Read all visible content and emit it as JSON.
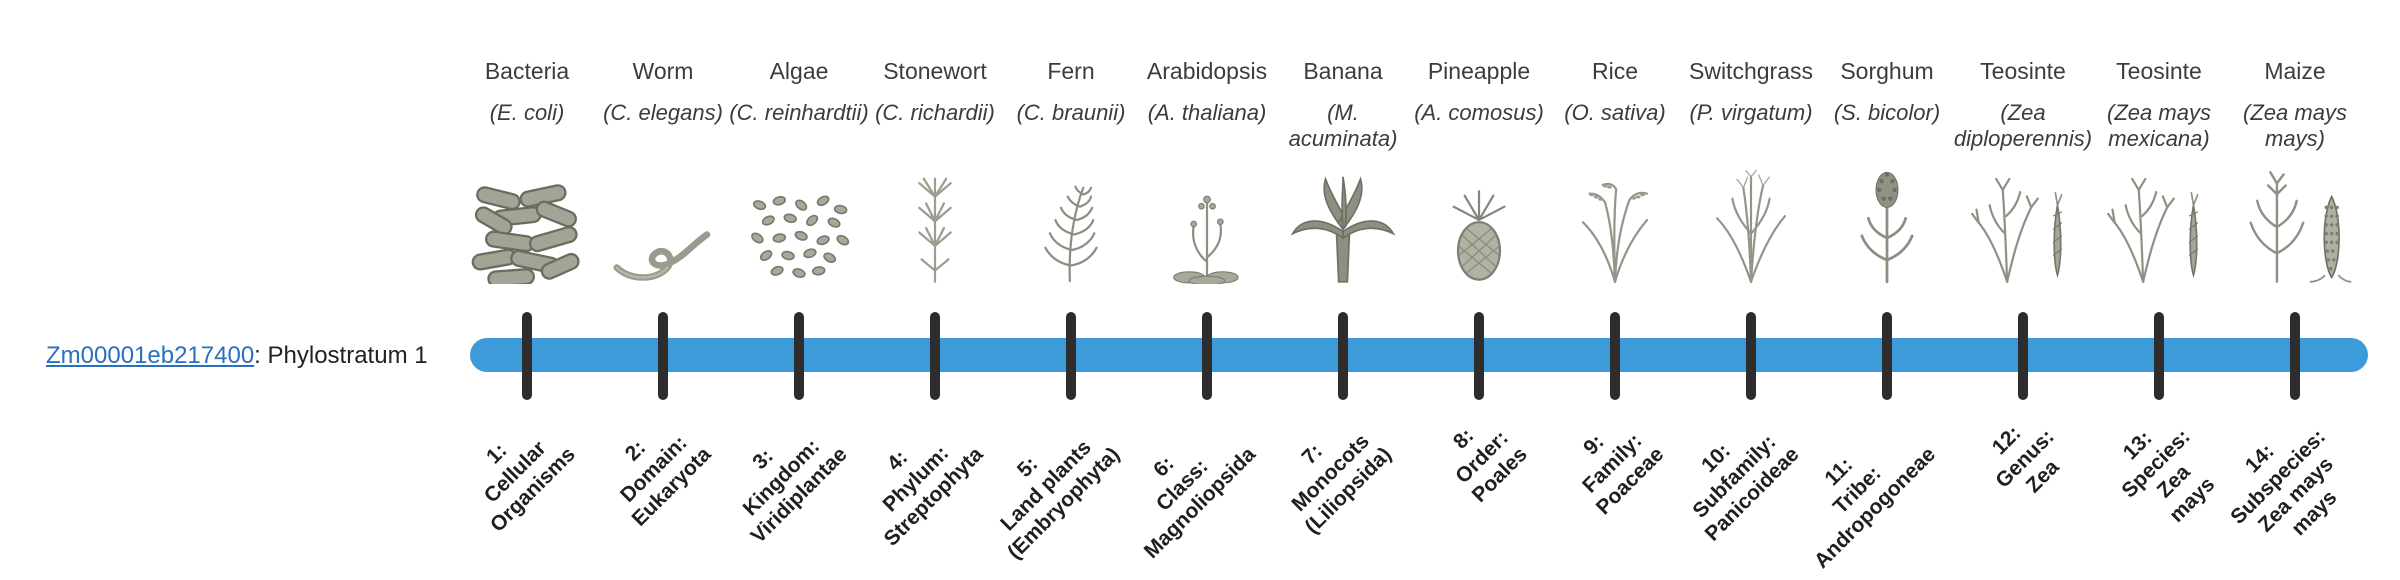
{
  "gene": {
    "id": "Zm00001eb217400",
    "suffix": ": Phylostratum 1"
  },
  "colors": {
    "bar": "#3d9bd9",
    "tick": "#2d2d2d",
    "link": "#2a6fc0"
  },
  "organisms": [
    {
      "name": "Bacteria",
      "sci": "(E. coli)",
      "icon": "bacteria-icon",
      "stratum": "1:\nCellular\nOrganisms"
    },
    {
      "name": "Worm",
      "sci": "(C. elegans)",
      "icon": "worm-icon",
      "stratum": "2:\nDomain:\nEukaryota"
    },
    {
      "name": "Algae",
      "sci": "(C. reinhardtii)",
      "icon": "algae-icon",
      "stratum": "3:\nKingdom:\nViridiplantae"
    },
    {
      "name": "Stonewort",
      "sci": "(C. richardii)",
      "icon": "stonewort-icon",
      "stratum": "4:\nPhylum:\nStreptophyta"
    },
    {
      "name": "Fern",
      "sci": "(C. braunii)",
      "icon": "fern-icon",
      "stratum": "5:\nLand plants\n(Embryophyta)"
    },
    {
      "name": "Arabidopsis",
      "sci": "(A. thaliana)",
      "icon": "arabidopsis-icon",
      "stratum": "6:\nClass:\nMagnoliopsida"
    },
    {
      "name": "Banana",
      "sci": "(M. acuminata)",
      "icon": "banana-icon",
      "stratum": "7:\nMonocots\n(Liliopsida)"
    },
    {
      "name": "Pineapple",
      "sci": "(A. comosus)",
      "icon": "pineapple-icon",
      "stratum": "8:\nOrder:\nPoales"
    },
    {
      "name": "Rice",
      "sci": "(O. sativa)",
      "icon": "rice-icon",
      "stratum": "9:\nFamily:\nPoaceae"
    },
    {
      "name": "Switchgrass",
      "sci": "(P. virgatum)",
      "icon": "switchgrass-icon",
      "stratum": "10:\nSubfamily:\nPanicoideae"
    },
    {
      "name": "Sorghum",
      "sci": "(S. bicolor)",
      "icon": "sorghum-icon",
      "stratum": "11:\nTribe:\nAndropogoneae"
    },
    {
      "name": "Teosinte",
      "sci": "(Zea diploperennis)",
      "icon": "teosinte-icon",
      "stratum": "12:\nGenus:\nZea"
    },
    {
      "name": "Teosinte",
      "sci": "(Zea mays mexicana)",
      "icon": "teosinte-icon",
      "stratum": "13:\nSpecies:\nZea\nmays"
    },
    {
      "name": "Maize",
      "sci": "(Zea mays mays)",
      "icon": "maize-icon",
      "stratum": "14:\nSubspecies:\nZea mays\nmays"
    }
  ]
}
